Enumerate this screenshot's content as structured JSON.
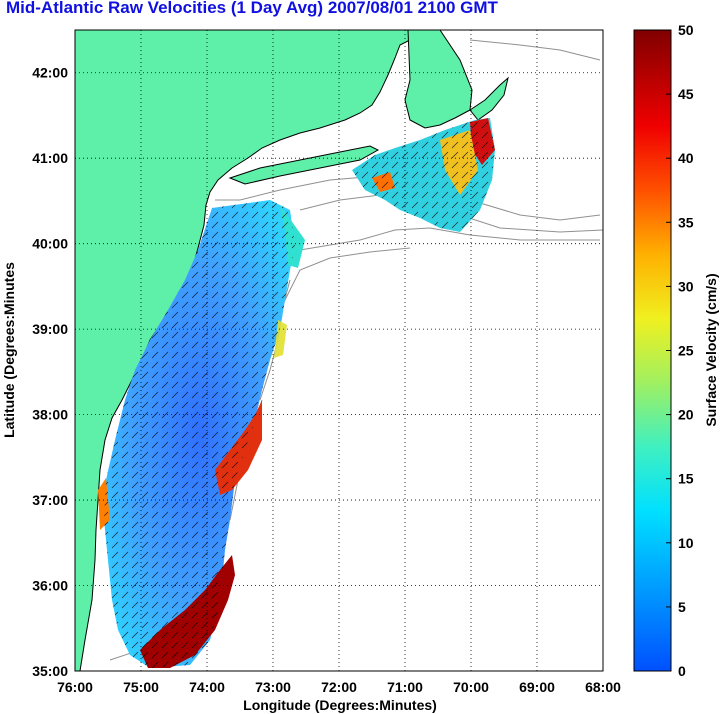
{
  "title": "Mid-Atlantic Raw Velocities (1 Day Avg) 2007/08/01 2100 GMT",
  "map": {
    "x_axis_label": "Longitude (Degrees:Minutes)",
    "y_axis_label": "Latitude (Degrees:Minutes",
    "x_ticks": [
      "76:00",
      "75:00",
      "74:00",
      "73:00",
      "72:00",
      "71:00",
      "70:00",
      "69:00",
      "68:00"
    ],
    "y_ticks": [
      "42:00",
      "41:00",
      "40:00",
      "39:00",
      "38:00",
      "37:00",
      "36:00",
      "35:00"
    ],
    "grid": "dotted",
    "land_color": "#5ef0a8",
    "coast_color": "#000000",
    "bathymetry_color": "#909090"
  },
  "colorbar": {
    "label": "Surface Velocity (cm/s)",
    "ticks": [
      "50",
      "45",
      "40",
      "35",
      "30",
      "25",
      "20",
      "15",
      "10",
      "5",
      "0"
    ],
    "colormap": "jet",
    "range": [
      0,
      50
    ]
  }
}
